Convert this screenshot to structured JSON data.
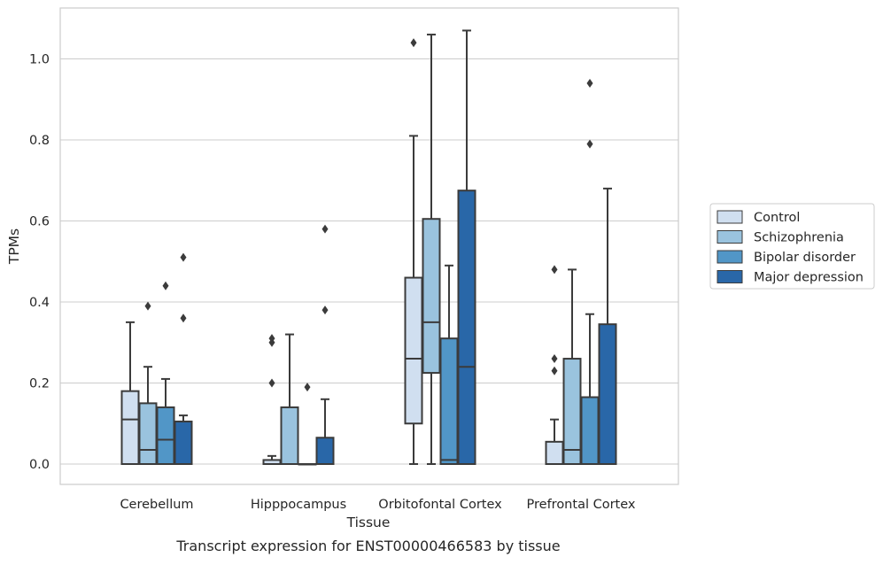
{
  "chart_data": {
    "type": "box",
    "title": "",
    "caption": "Transcript expression for ENST00000466583 by tissue",
    "xlabel": "Tissue",
    "ylabel": "TPMs",
    "ylim": [
      -0.05,
      1.125
    ],
    "yticks": [
      0.0,
      0.2,
      0.4,
      0.6,
      0.8,
      1.0
    ],
    "ytick_labels": [
      "0.0",
      "0.2",
      "0.4",
      "0.6",
      "0.8",
      "1.0"
    ],
    "grid": "horizontal",
    "legend_position": "center-right outside",
    "categories": [
      "Cerebellum",
      "Hipppocampus",
      "Orbitofontal Cortex",
      "Prefrontal Cortex"
    ],
    "series": [
      {
        "name": "Control",
        "color": "#d0dff0",
        "boxes": [
          {
            "min": 0.0,
            "q1": 0.0,
            "median": 0.11,
            "q3": 0.18,
            "max": 0.35,
            "outliers": []
          },
          {
            "min": 0.0,
            "q1": 0.0,
            "median": 0.0,
            "q3": 0.01,
            "max": 0.02,
            "outliers": [
              0.2,
              0.3,
              0.31
            ]
          },
          {
            "min": 0.0,
            "q1": 0.1,
            "median": 0.26,
            "q3": 0.46,
            "max": 0.81,
            "outliers": [
              1.04
            ]
          },
          {
            "min": 0.0,
            "q1": 0.0,
            "median": 0.0,
            "q3": 0.055,
            "max": 0.11,
            "outliers": [
              0.23,
              0.26,
              0.48
            ]
          }
        ]
      },
      {
        "name": "Schizophrenia",
        "color": "#9ac3de",
        "boxes": [
          {
            "min": 0.0,
            "q1": 0.0,
            "median": 0.035,
            "q3": 0.15,
            "max": 0.24,
            "outliers": [
              0.39
            ]
          },
          {
            "min": 0.0,
            "q1": 0.0,
            "median": 0.0,
            "q3": 0.14,
            "max": 0.32,
            "outliers": []
          },
          {
            "min": 0.0,
            "q1": 0.225,
            "median": 0.35,
            "q3": 0.605,
            "max": 1.06,
            "outliers": []
          },
          {
            "min": 0.0,
            "q1": 0.0,
            "median": 0.035,
            "q3": 0.26,
            "max": 0.48,
            "outliers": []
          }
        ]
      },
      {
        "name": "Bipolar disorder",
        "color": "#5196c7",
        "boxes": [
          {
            "min": 0.0,
            "q1": 0.0,
            "median": 0.06,
            "q3": 0.14,
            "max": 0.21,
            "outliers": [
              0.44
            ]
          },
          {
            "min": 0.0,
            "q1": 0.0,
            "median": 0.0,
            "q3": 0.0,
            "max": 0.0,
            "outliers": [
              0.19
            ]
          },
          {
            "min": 0.0,
            "q1": 0.0,
            "median": 0.01,
            "q3": 0.31,
            "max": 0.49,
            "outliers": []
          },
          {
            "min": 0.0,
            "q1": 0.0,
            "median": 0.0,
            "q3": 0.165,
            "max": 0.37,
            "outliers": [
              0.79,
              0.94
            ]
          }
        ]
      },
      {
        "name": "Major depression",
        "color": "#2967a8",
        "boxes": [
          {
            "min": 0.0,
            "q1": 0.0,
            "median": 0.0,
            "q3": 0.105,
            "max": 0.12,
            "outliers": [
              0.36,
              0.51
            ]
          },
          {
            "min": 0.0,
            "q1": 0.0,
            "median": 0.0,
            "q3": 0.065,
            "max": 0.16,
            "outliers": [
              0.38,
              0.58
            ]
          },
          {
            "min": 0.0,
            "q1": 0.0,
            "median": 0.24,
            "q3": 0.675,
            "max": 1.07,
            "outliers": []
          },
          {
            "min": 0.0,
            "q1": 0.0,
            "median": 0.0,
            "q3": 0.345,
            "max": 0.68,
            "outliers": []
          }
        ]
      }
    ]
  }
}
